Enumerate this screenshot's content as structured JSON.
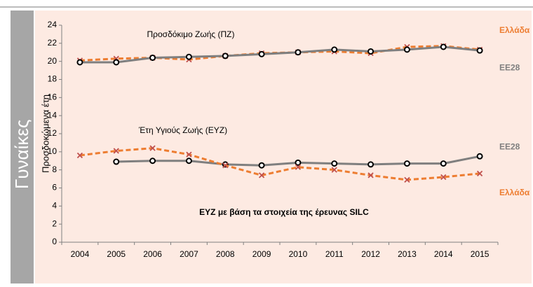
{
  "chart_data": {
    "type": "line",
    "side_label": "Γυναίκες",
    "ylabel": "Προσδοκώμενα έτη",
    "annotations": [
      "Προσδόκιμο Ζωής (ΠΖ)",
      "Έτη Υγιούς Ζωής (ΕΥΖ)",
      "ΕΥΖ με βάση τα στοιχεία της έρευνας SILC"
    ],
    "categories": [
      "2004",
      "2005",
      "2006",
      "2007",
      "2008",
      "2009",
      "2010",
      "2011",
      "2012",
      "2013",
      "2014",
      "2015"
    ],
    "series": [
      {
        "name": "Ελλάδα",
        "color": "#ed7d31",
        "marker_color": "#c0504d",
        "dashed": true,
        "values": [
          20.1,
          20.3,
          20.4,
          20.2,
          20.6,
          20.9,
          21.0,
          21.1,
          20.9,
          21.6,
          21.7,
          21.3
        ]
      },
      {
        "name": "ΕΕ28",
        "color": "#7f7f7f",
        "marker_color": "#000000",
        "dashed": false,
        "values": [
          19.9,
          19.9,
          20.4,
          20.5,
          20.6,
          20.8,
          21.0,
          21.3,
          21.1,
          21.3,
          21.6,
          21.2
        ]
      },
      {
        "name": "ΕΕ28",
        "color": "#7f7f7f",
        "marker_color": "#000000",
        "dashed": false,
        "values": [
          null,
          8.9,
          9.0,
          9.0,
          8.6,
          8.5,
          8.8,
          8.7,
          8.6,
          8.7,
          8.7,
          9.5
        ]
      },
      {
        "name": "Ελλάδα",
        "color": "#ed7d31",
        "marker_color": "#c0504d",
        "dashed": true,
        "values": [
          9.6,
          10.1,
          10.4,
          9.7,
          8.5,
          7.4,
          8.3,
          8.0,
          7.4,
          6.9,
          7.2,
          7.6
        ]
      }
    ],
    "ylim": [
      0,
      24
    ],
    "yticks": [
      0,
      2,
      4,
      6,
      8,
      10,
      12,
      14,
      16,
      18,
      20,
      22,
      24
    ]
  }
}
